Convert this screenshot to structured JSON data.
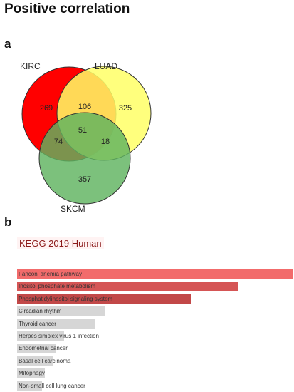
{
  "title": "Positive correlation",
  "panel_a_label": "a",
  "panel_b_label": "b",
  "venn": {
    "sets": [
      {
        "name": "KIRC",
        "color": "#ff0000"
      },
      {
        "name": "LUAD",
        "color": "#ffff66"
      },
      {
        "name": "SKCM",
        "color": "#66bb66"
      }
    ],
    "regions": {
      "kirc_only": "269",
      "luad_only": "325",
      "skcm_only": "357",
      "kirc_luad": "106",
      "kirc_skcm": "74",
      "luad_skcm": "18",
      "all_three": "51"
    }
  },
  "chart_data": {
    "type": "bar",
    "orientation": "horizontal",
    "title": "KEGG 2019 Human",
    "categories": [
      "Fanconi anemia pathway",
      "Inositol phosphate metabolism",
      "Phosphatidylinositol signaling system",
      "Circadian rhythm",
      "Thyroid cancer",
      "Herpes simplex virus 1 infection",
      "Endometrial cancer",
      "Basal cell carcinoma",
      "Mitophagy",
      "Non-small cell lung cancer"
    ],
    "values": [
      1.0,
      0.8,
      0.63,
      0.32,
      0.28,
      0.17,
      0.14,
      0.13,
      0.1,
      0.09
    ],
    "bar_colors": [
      "#f26b6b",
      "#d55555",
      "#c24848",
      "#d6d6d6",
      "#d6d6d6",
      "#d6d6d6",
      "#d6d6d6",
      "#d6d6d6",
      "#d6d6d6",
      "#d6d6d6"
    ]
  }
}
